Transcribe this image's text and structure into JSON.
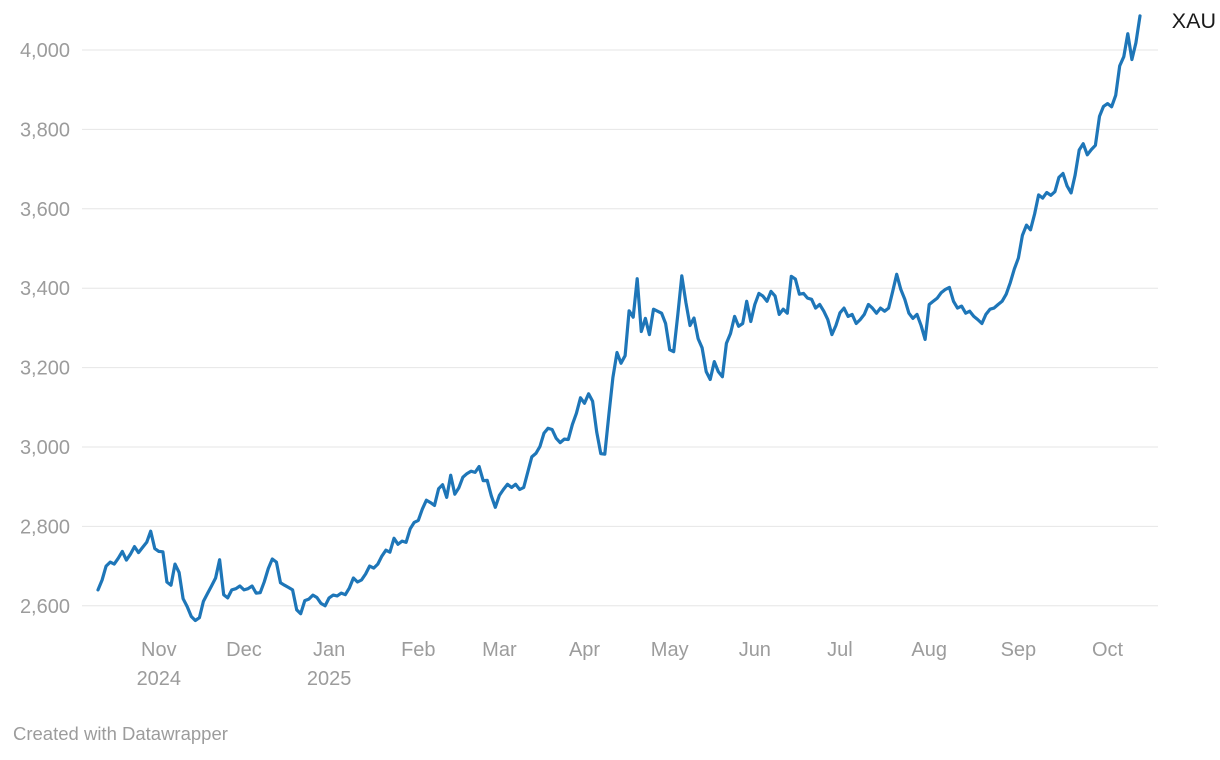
{
  "series_label": "XAU",
  "footer_text": "Created with Datawrapper",
  "colors": {
    "line": "#1e76b8",
    "grid": "#e6e6e6",
    "tick_text": "#9c9c9c",
    "series_label_text": "#1a1a1a",
    "footer_text": "#9c9c9c",
    "background": "#ffffff"
  },
  "chart_data": {
    "type": "line",
    "title": "",
    "grid": "horizontal-only",
    "legend_position": "label-at-line-end",
    "x_range_note": "daily values, Oct 2024 through Oct 2025, evenly spaced",
    "ylim": [
      2540,
      4100
    ],
    "y_axis": {
      "ticks": [
        {
          "value": 2600,
          "label": "2,600"
        },
        {
          "value": 2800,
          "label": "2,800"
        },
        {
          "value": 3000,
          "label": "3,000"
        },
        {
          "value": 3200,
          "label": "3,200"
        },
        {
          "value": 3400,
          "label": "3,400"
        },
        {
          "value": 3600,
          "label": "3,600"
        },
        {
          "value": 3800,
          "label": "3,800"
        },
        {
          "value": 4000,
          "label": "4,000"
        }
      ]
    },
    "x_ticks": [
      {
        "label": "Nov",
        "sublabel": "2024",
        "index": 15
      },
      {
        "label": "Dec",
        "sublabel": "",
        "index": 36
      },
      {
        "label": "Jan",
        "sublabel": "2025",
        "index": 57
      },
      {
        "label": "Feb",
        "sublabel": "",
        "index": 79
      },
      {
        "label": "Mar",
        "sublabel": "",
        "index": 99
      },
      {
        "label": "Apr",
        "sublabel": "",
        "index": 120
      },
      {
        "label": "May",
        "sublabel": "",
        "index": 141
      },
      {
        "label": "Jun",
        "sublabel": "",
        "index": 162
      },
      {
        "label": "Jul",
        "sublabel": "",
        "index": 183
      },
      {
        "label": "Aug",
        "sublabel": "",
        "index": 205
      },
      {
        "label": "Sep",
        "sublabel": "",
        "index": 227
      },
      {
        "label": "Oct",
        "sublabel": "",
        "index": 249
      }
    ],
    "series": [
      {
        "name": "XAU",
        "values": [
          2640,
          2665,
          2700,
          2710,
          2705,
          2720,
          2737,
          2715,
          2730,
          2749,
          2734,
          2747,
          2760,
          2788,
          2744,
          2737,
          2736,
          2660,
          2652,
          2705,
          2684,
          2618,
          2598,
          2573,
          2563,
          2570,
          2611,
          2631,
          2650,
          2670,
          2716,
          2628,
          2620,
          2640,
          2643,
          2650,
          2640,
          2643,
          2650,
          2632,
          2633,
          2660,
          2694,
          2718,
          2710,
          2658,
          2652,
          2646,
          2640,
          2590,
          2580,
          2613,
          2617,
          2627,
          2621,
          2606,
          2600,
          2620,
          2627,
          2625,
          2632,
          2628,
          2645,
          2670,
          2660,
          2665,
          2680,
          2700,
          2695,
          2705,
          2725,
          2740,
          2735,
          2770,
          2755,
          2763,
          2760,
          2794,
          2810,
          2815,
          2844,
          2866,
          2860,
          2853,
          2895,
          2905,
          2873,
          2929,
          2881,
          2897,
          2924,
          2933,
          2939,
          2936,
          2951,
          2915,
          2916,
          2877,
          2848,
          2878,
          2893,
          2906,
          2898,
          2906,
          2893,
          2898,
          2937,
          2975,
          2984,
          3001,
          3035,
          3047,
          3044,
          3022,
          3011,
          3020,
          3019,
          3057,
          3085,
          3124,
          3110,
          3134,
          3115,
          3038,
          2983,
          2982,
          3082,
          3175,
          3238,
          3211,
          3230,
          3343,
          3327,
          3424,
          3291,
          3324,
          3283,
          3347,
          3342,
          3337,
          3311,
          3245,
          3240,
          3333,
          3431,
          3364,
          3306,
          3325,
          3273,
          3250,
          3190,
          3170,
          3215,
          3190,
          3177,
          3261,
          3286,
          3329,
          3304,
          3311,
          3367,
          3316,
          3359,
          3387,
          3380,
          3367,
          3392,
          3380,
          3334,
          3347,
          3337,
          3430,
          3423,
          3385,
          3387,
          3375,
          3372,
          3350,
          3359,
          3342,
          3321,
          3283,
          3306,
          3338,
          3350,
          3329,
          3334,
          3311,
          3321,
          3334,
          3359,
          3350,
          3337,
          3350,
          3342,
          3350,
          3392,
          3435,
          3397,
          3372,
          3337,
          3324,
          3334,
          3306,
          3271,
          3359,
          3367,
          3375,
          3389,
          3397,
          3402,
          3367,
          3350,
          3355,
          3337,
          3342,
          3329,
          3321,
          3311,
          3334,
          3347,
          3350,
          3359,
          3367,
          3385,
          3414,
          3448,
          3476,
          3533,
          3559,
          3547,
          3587,
          3635,
          3627,
          3641,
          3634,
          3643,
          3679,
          3689,
          3658,
          3640,
          3685,
          3748,
          3764,
          3736,
          3749,
          3760,
          3833,
          3858,
          3865,
          3857,
          3886,
          3960,
          3983,
          4041,
          3976,
          4018,
          4086
        ]
      }
    ]
  }
}
